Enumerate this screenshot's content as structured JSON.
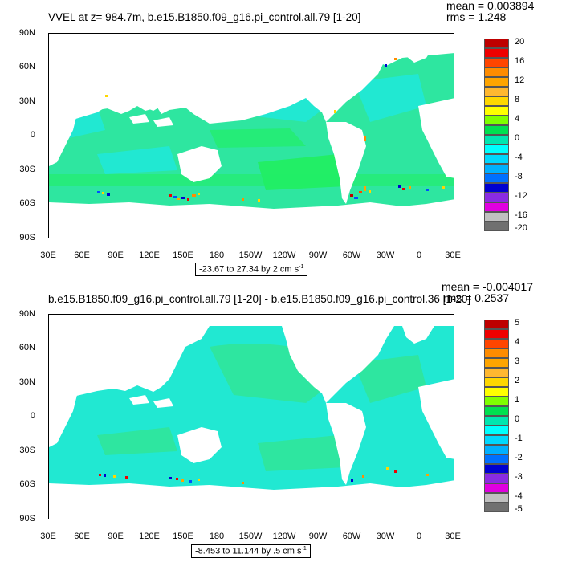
{
  "panels": [
    {
      "title": "VVEL at z= 984.7m, b.e15.B1850.f09_g16.pi_control.all.79 [1-20]",
      "mean": "mean = 0.003894",
      "rms": "rms = 1.248",
      "range_text": "-23.67 to 27.34 by 2 cm s",
      "range_sup": "-1",
      "colorbar_labels": [
        "20",
        "16",
        "12",
        "8",
        "4",
        "0",
        "-4",
        "-8",
        "-12",
        "-16",
        "-20"
      ]
    },
    {
      "title": "b.e15.B1850.f09_g16.pi_control.all.79 [1-20] - b.e15.B1850.f09_g16.pi_control.36 [1-20]",
      "mean": "mean = -0.004017",
      "rms": "rms = 0.2537",
      "range_text": "-8.453 to 11.144 by .5 cm s",
      "range_sup": "-1",
      "colorbar_labels": [
        "5",
        "4",
        "3",
        "2",
        "1",
        "0",
        "-1",
        "-2",
        "-3",
        "-4",
        "-5"
      ]
    }
  ],
  "lat_labels": [
    "90N",
    "60N",
    "30N",
    "0",
    "30S",
    "60S",
    "90S"
  ],
  "lon_labels": [
    "30E",
    "60E",
    "90E",
    "120E",
    "150E",
    "180",
    "150W",
    "120W",
    "90W",
    "60W",
    "30W",
    "0",
    "30E"
  ],
  "colors": {
    "ocean_low": "#2ee6a0",
    "ocean_mid": "#21e8d2",
    "ocean_green": "#22ee66",
    "land": "#ffffff",
    "palette": [
      "#be0000",
      "#ee0000",
      "#ff4500",
      "#ff8c00",
      "#ffa500",
      "#ffd700",
      "#ffff00",
      "#7fff00",
      "#00e050",
      "#00e6b0",
      "#00ffff",
      "#00c8ff",
      "#0096ff",
      "#0050ff",
      "#0000d0",
      "#8a2be2",
      "#e000e0",
      "#c0c0c0",
      "#707070"
    ]
  }
}
